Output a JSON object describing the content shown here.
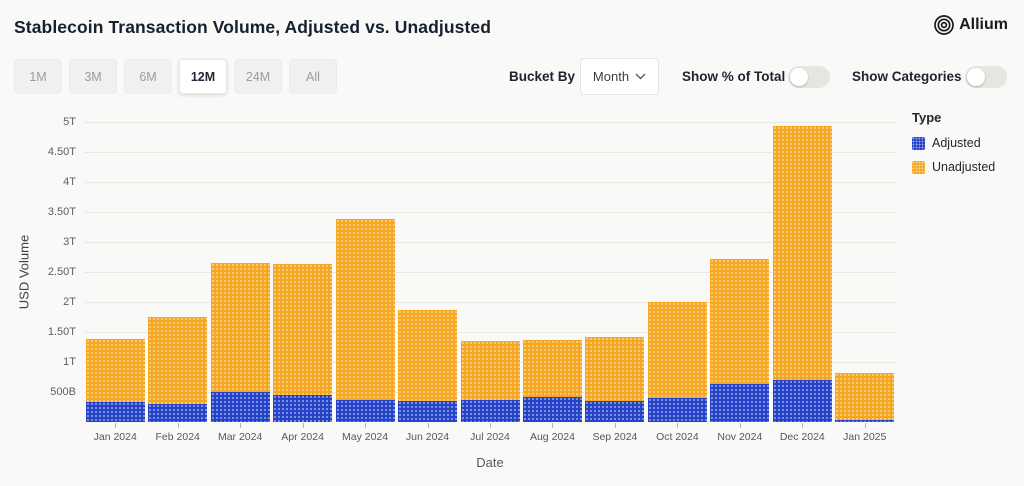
{
  "header": {
    "title": "Stablecoin Transaction Volume, Adjusted vs. Unadjusted",
    "logo_text": "Allium"
  },
  "controls": {
    "range_buttons": [
      {
        "label": "1M",
        "selected": false
      },
      {
        "label": "3M",
        "selected": false
      },
      {
        "label": "6M",
        "selected": false
      },
      {
        "label": "12M",
        "selected": true
      },
      {
        "label": "24M",
        "selected": false
      },
      {
        "label": "All",
        "selected": false
      }
    ],
    "bucket_by_label": "Bucket By",
    "bucket_value": "Month",
    "show_pct_label": "Show % of Total",
    "show_pct_on": false,
    "show_categories_label": "Show Categories",
    "show_categories_on": false
  },
  "chart_data": {
    "type": "bar",
    "stacked": true,
    "title": "Stablecoin Transaction Volume, Adjusted vs. Unadjusted",
    "xlabel": "Date",
    "ylabel": "USD Volume",
    "ylim_trillions": [
      0,
      5
    ],
    "grid": true,
    "legend_position": "right",
    "categories": [
      "Jan 2024",
      "Feb 2024",
      "Mar 2024",
      "Apr 2024",
      "May 2024",
      "Jun 2024",
      "Jul 2024",
      "Aug 2024",
      "Sep 2024",
      "Oct 2024",
      "Nov 2024",
      "Dec 2024",
      "Jan 2025"
    ],
    "series": [
      {
        "name": "Adjusted",
        "color": "#2342c8",
        "values_trillions": [
          0.33,
          0.3,
          0.5,
          0.45,
          0.36,
          0.35,
          0.37,
          0.41,
          0.35,
          0.4,
          0.63,
          0.7,
          0.04
        ]
      },
      {
        "name": "Unadjusted",
        "color": "#f6a61f",
        "values_trillions": [
          1.06,
          1.45,
          2.15,
          2.18,
          3.03,
          1.51,
          0.98,
          0.96,
          1.07,
          1.6,
          2.08,
          4.23,
          0.77
        ]
      }
    ],
    "totals_trillions": [
      1.39,
      1.75,
      2.65,
      2.63,
      3.39,
      1.86,
      1.35,
      1.37,
      1.42,
      2.0,
      2.71,
      4.93,
      0.81
    ],
    "yticks": [
      {
        "label": "500B",
        "value_trillions": 0.5
      },
      {
        "label": "1T",
        "value_trillions": 1.0
      },
      {
        "label": "1.50T",
        "value_trillions": 1.5
      },
      {
        "label": "2T",
        "value_trillions": 2.0
      },
      {
        "label": "2.50T",
        "value_trillions": 2.5
      },
      {
        "label": "3T",
        "value_trillions": 3.0
      },
      {
        "label": "3.50T",
        "value_trillions": 3.5
      },
      {
        "label": "4T",
        "value_trillions": 4.0
      },
      {
        "label": "4.50T",
        "value_trillions": 4.5
      },
      {
        "label": "5T",
        "value_trillions": 5.0
      }
    ],
    "legend": {
      "title": "Type",
      "entries": [
        "Adjusted",
        "Unadjusted"
      ]
    }
  }
}
